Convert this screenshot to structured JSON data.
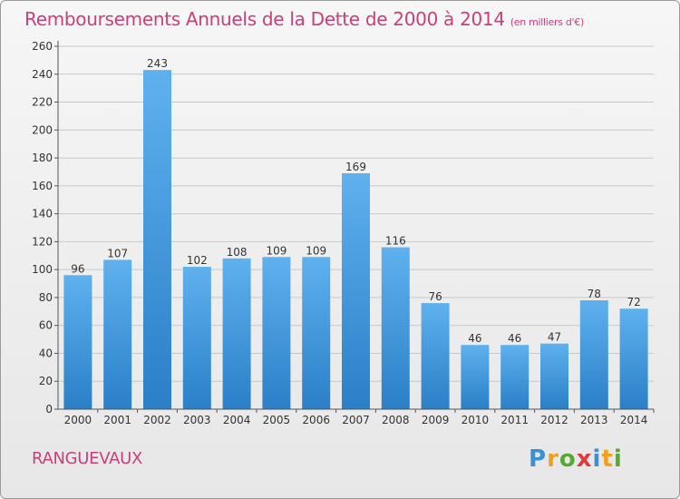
{
  "title": "Remboursements Annuels de la Dette de 2000 à 2014",
  "subtitle": "(en milliers d'€)",
  "commune": "RANGUEVAUX",
  "logo": {
    "text": "Proxiti",
    "letters": [
      {
        "char": "P",
        "color": "#3b8fd6"
      },
      {
        "char": "r",
        "color": "#f0a020"
      },
      {
        "char": "o",
        "color": "#55aa33"
      },
      {
        "char": "x",
        "color": "#e03a3a"
      },
      {
        "char": "i",
        "color": "#3b8fd6"
      },
      {
        "char": "t",
        "color": "#f0a020"
      },
      {
        "char": "i",
        "color": "#55aa33"
      }
    ]
  },
  "colors": {
    "title": "#c8407a",
    "bar_top": "#5fb1ee",
    "bar_bottom": "#2a7fc7",
    "grid": "#c8c8c8",
    "axis_text": "#333333"
  },
  "chart_data": {
    "type": "bar",
    "categories": [
      "2000",
      "2001",
      "2002",
      "2003",
      "2004",
      "2005",
      "2006",
      "2007",
      "2008",
      "2009",
      "2010",
      "2011",
      "2012",
      "2013",
      "2014"
    ],
    "values": [
      96,
      107,
      243,
      102,
      108,
      109,
      109,
      169,
      116,
      76,
      46,
      46,
      47,
      78,
      72
    ],
    "data_labels": [
      "96",
      "107",
      "243",
      "102",
      "108",
      "109",
      "109",
      "169",
      "116",
      "76",
      "46",
      "46",
      "47",
      "78",
      "72"
    ],
    "yticks": [
      0,
      20,
      40,
      60,
      80,
      100,
      120,
      140,
      160,
      180,
      200,
      220,
      240,
      260
    ],
    "ylim": [
      0,
      260
    ],
    "grid": true
  }
}
